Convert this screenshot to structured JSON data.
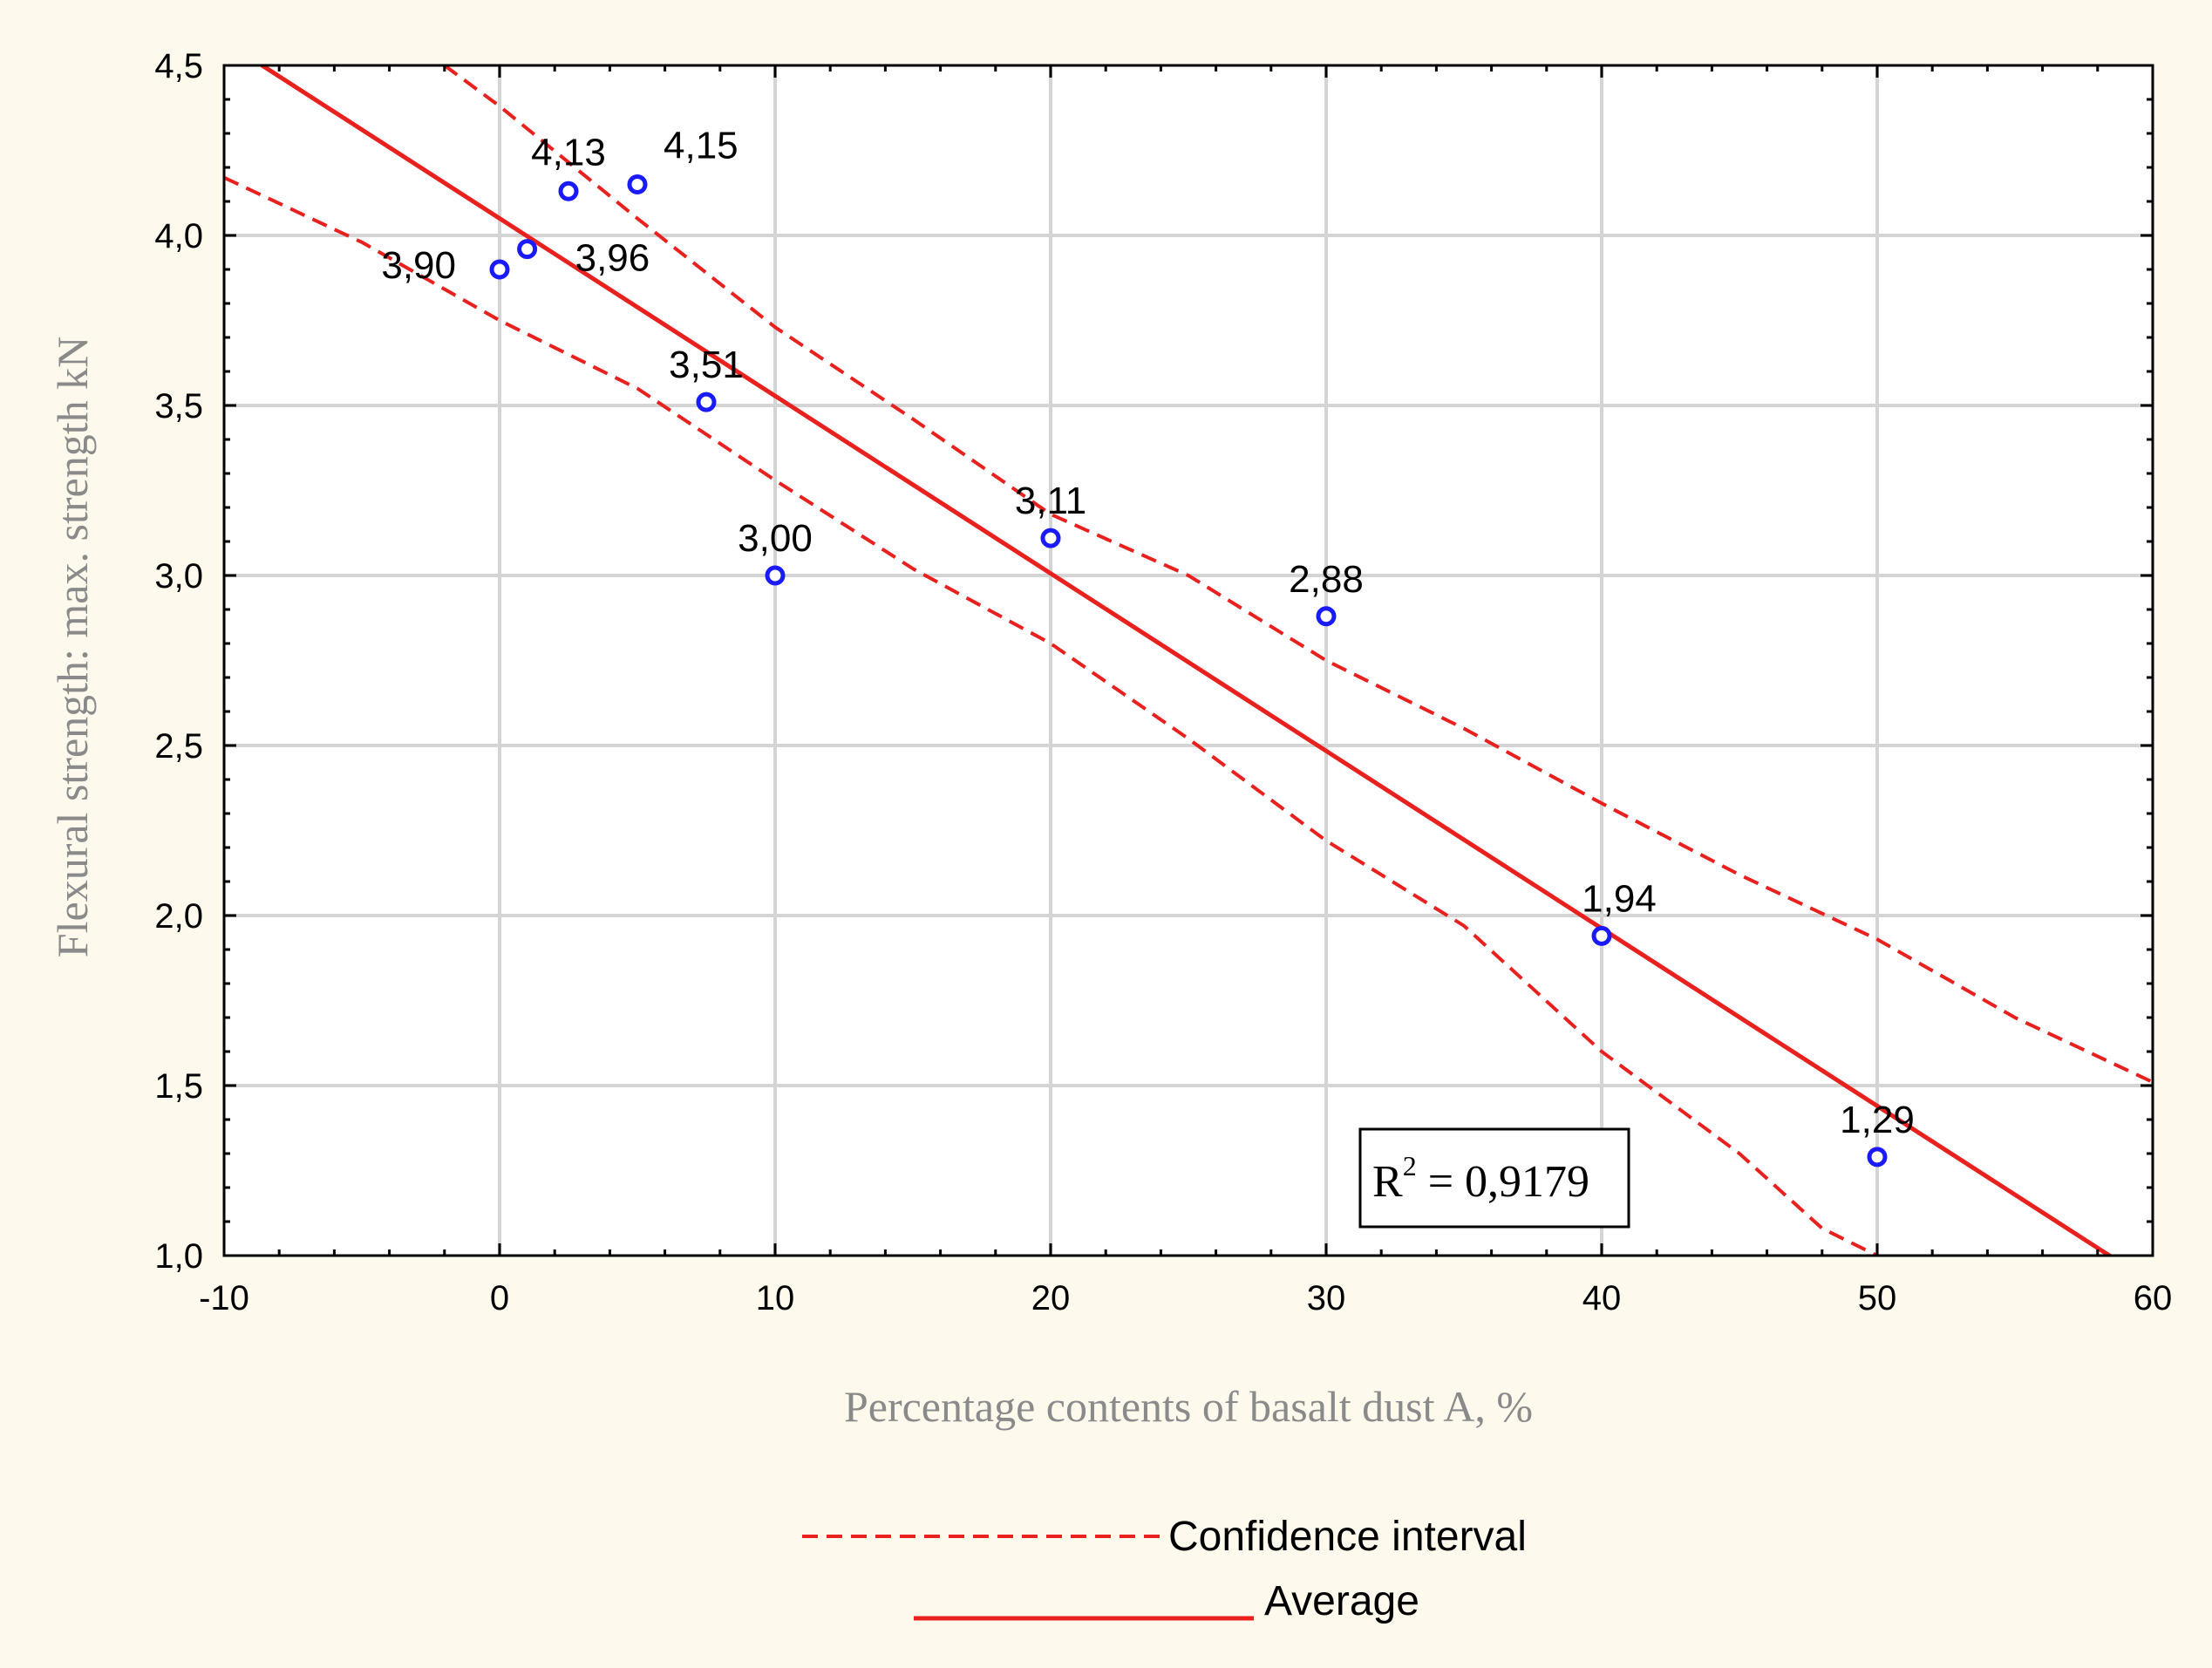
{
  "chart_data": {
    "type": "scatter",
    "xlabel": "Percentage contents of basalt dust A, %",
    "ylabel": "Flexural strength: max. strength kN",
    "xlim": [
      -10,
      60
    ],
    "ylim": [
      1.0,
      4.5
    ],
    "x_ticks": [
      -10,
      0,
      10,
      20,
      30,
      40,
      50,
      60
    ],
    "x_tick_labels": [
      "-10",
      "0",
      "10",
      "20",
      "30",
      "40",
      "50",
      "60"
    ],
    "y_ticks": [
      1.0,
      1.5,
      2.0,
      2.5,
      3.0,
      3.5,
      4.0,
      4.5
    ],
    "y_tick_labels": [
      "1,0",
      "1,5",
      "2,0",
      "2,5",
      "3,0",
      "3,5",
      "4,0",
      "4,5"
    ],
    "grid": true,
    "points": [
      {
        "x": 0,
        "y": 3.9,
        "label": "3,90"
      },
      {
        "x": 1,
        "y": 3.96,
        "label": "3,96"
      },
      {
        "x": 2.5,
        "y": 4.13,
        "label": "4,13"
      },
      {
        "x": 5,
        "y": 4.15,
        "label": "4,15"
      },
      {
        "x": 7.5,
        "y": 3.51,
        "label": "3,51"
      },
      {
        "x": 10,
        "y": 3.0,
        "label": "3,00"
      },
      {
        "x": 20,
        "y": 3.11,
        "label": "3,11"
      },
      {
        "x": 30,
        "y": 2.88,
        "label": "2,88"
      },
      {
        "x": 40,
        "y": 1.94,
        "label": "1,94"
      },
      {
        "x": 50,
        "y": 1.29,
        "label": "1,29"
      }
    ],
    "regression": {
      "name": "Average",
      "intercept": 4.05,
      "slope": -0.0522
    },
    "confidence_upper": [
      {
        "x": -2.0,
        "y": 4.5
      },
      {
        "x": 0,
        "y": 4.38
      },
      {
        "x": 5,
        "y": 4.05
      },
      {
        "x": 10,
        "y": 3.73
      },
      {
        "x": 15,
        "y": 3.46
      },
      {
        "x": 20,
        "y": 3.18
      },
      {
        "x": 25,
        "y": 3.0
      },
      {
        "x": 30,
        "y": 2.75
      },
      {
        "x": 35,
        "y": 2.55
      },
      {
        "x": 40,
        "y": 2.33
      },
      {
        "x": 45,
        "y": 2.12
      },
      {
        "x": 50,
        "y": 1.93
      },
      {
        "x": 55,
        "y": 1.7
      },
      {
        "x": 60,
        "y": 1.51
      }
    ],
    "confidence_lower": [
      {
        "x": -10,
        "y": 4.17
      },
      {
        "x": -5,
        "y": 3.98
      },
      {
        "x": 0,
        "y": 3.75
      },
      {
        "x": 5,
        "y": 3.55
      },
      {
        "x": 10,
        "y": 3.28
      },
      {
        "x": 15,
        "y": 3.02
      },
      {
        "x": 20,
        "y": 2.8
      },
      {
        "x": 25,
        "y": 2.52
      },
      {
        "x": 30,
        "y": 2.22
      },
      {
        "x": 35,
        "y": 1.97
      },
      {
        "x": 40,
        "y": 1.6
      },
      {
        "x": 45,
        "y": 1.3
      },
      {
        "x": 48,
        "y": 1.08
      },
      {
        "x": 50,
        "y": 1.0
      }
    ],
    "legend": [
      {
        "label": "Confidence interval",
        "style": "dashed"
      },
      {
        "label": "Average",
        "style": "solid"
      }
    ],
    "annotation": {
      "text": "R² = 0,9179",
      "base": "R",
      "sup": "2",
      "rest": " = 0,9179"
    },
    "colors": {
      "line": "#e8201e",
      "points": "#1a1aff",
      "grid": "#d4d4d4",
      "background": "#fdf9ec",
      "plot_bg": "#ffffff"
    }
  }
}
